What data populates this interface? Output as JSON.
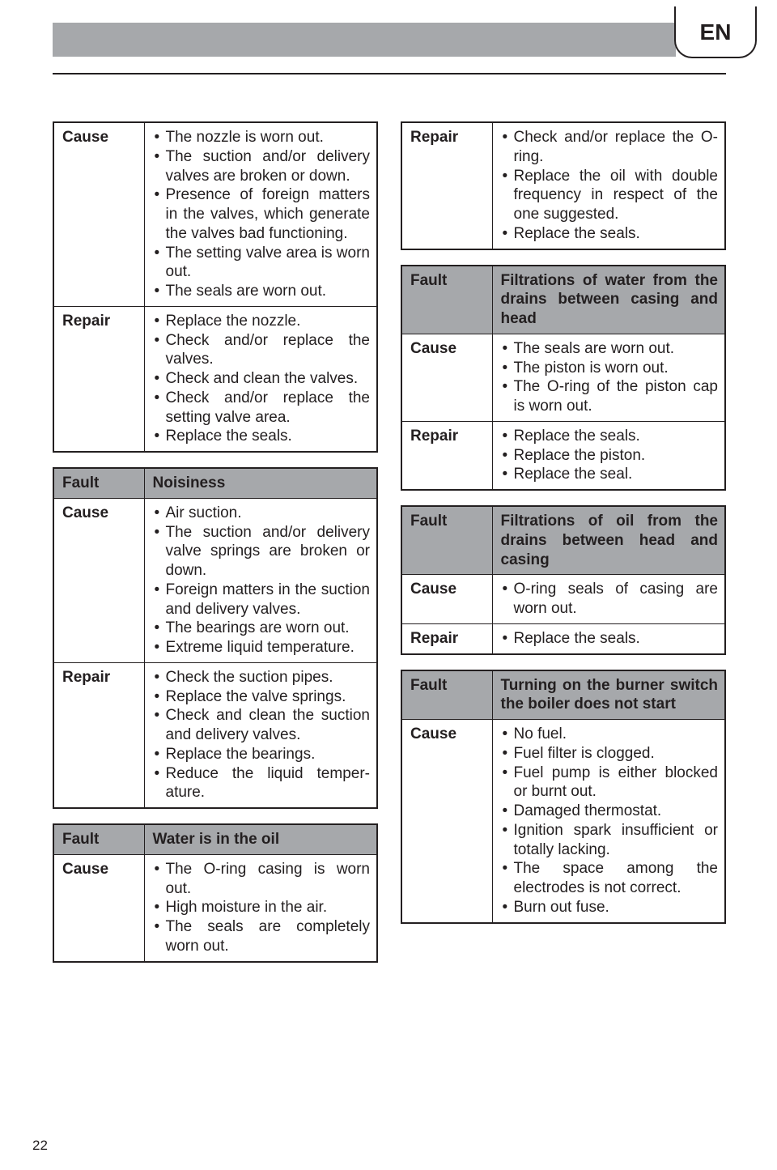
{
  "lang_label": "EN",
  "page_number": "22",
  "left_tables": [
    {
      "rows": [
        {
          "type": "plain",
          "label": "Cause",
          "items": [
            "The nozzle is worn out.",
            "The suction and/or deliv­ery valves are broken or down.",
            "Presence of foreign mat­ters in the valves, which generate the valves bad functioning.",
            "The setting valve area is worn out.",
            "The seals are worn out."
          ]
        },
        {
          "type": "plain",
          "label": "Repair",
          "items": [
            "Replace the nozzle.",
            "Check and/or replace the valves.",
            "Check and clean the valves.",
            "Check and/or replace the setting valve area.",
            "Replace the seals."
          ]
        }
      ]
    },
    {
      "rows": [
        {
          "type": "fault",
          "label": "Fault",
          "text": "Noisiness"
        },
        {
          "type": "plain",
          "label": "Cause",
          "items": [
            "Air suction.",
            "The suction and/or deliv­ery valve springs are bro­ken or down.",
            "Foreign matters in the suc­tion and delivery valves.",
            "The bearings are worn out.",
            "Extreme liquid tempera­ture."
          ]
        },
        {
          "type": "plain",
          "label": "Repair",
          "items": [
            "Check the suction pipes.",
            "Replace the valve springs.",
            "Check and clean the suc­tion and delivery valves.",
            "Replace the bearings.",
            "Reduce the liquid temper­ature."
          ]
        }
      ]
    },
    {
      "rows": [
        {
          "type": "fault",
          "label": "Fault",
          "text": "Water is in the oil"
        },
        {
          "type": "plain",
          "label": "Cause",
          "items": [
            "The O-ring casing is worn out.",
            "High moisture in the air.",
            "The seals are completely worn out."
          ]
        }
      ]
    }
  ],
  "right_tables": [
    {
      "rows": [
        {
          "type": "plain",
          "label": "Repair",
          "items": [
            "Check and/or replace the O-ring.",
            "Replace the oil with dou­ble frequency in respect of the one suggested.",
            "Replace the seals."
          ]
        }
      ]
    },
    {
      "rows": [
        {
          "type": "fault",
          "label": "Fault",
          "text": "Filtrations of water from the drains between casing and head"
        },
        {
          "type": "plain",
          "label": "Cause",
          "items": [
            "The seals are worn out.",
            "The piston is worn out.",
            "The O-ring of the piston cap is worn out."
          ]
        },
        {
          "type": "plain",
          "label": "Repair",
          "items": [
            "Replace the seals.",
            "Replace the piston.",
            "Replace the seal."
          ]
        }
      ]
    },
    {
      "rows": [
        {
          "type": "fault",
          "label": "Fault",
          "text": "Filtrations of oil from the drains between head and casing"
        },
        {
          "type": "plain",
          "label": "Cause",
          "items": [
            "O-ring seals of casing are worn out."
          ]
        },
        {
          "type": "plain",
          "label": "Repair",
          "items": [
            "Replace the seals."
          ]
        }
      ]
    },
    {
      "rows": [
        {
          "type": "fault",
          "label": "Fault",
          "text": "Turning on the burner switch the boiler does not start"
        },
        {
          "type": "plain",
          "label": "Cause",
          "items": [
            "No fuel.",
            "Fuel filter is clogged.",
            "Fuel pump is either blocked or burnt out.",
            "Damaged thermostat.",
            "Ignition spark insufficient or totally lacking.",
            "The space among the electrodes is not correct.",
            "Burn out fuse."
          ]
        }
      ]
    }
  ]
}
